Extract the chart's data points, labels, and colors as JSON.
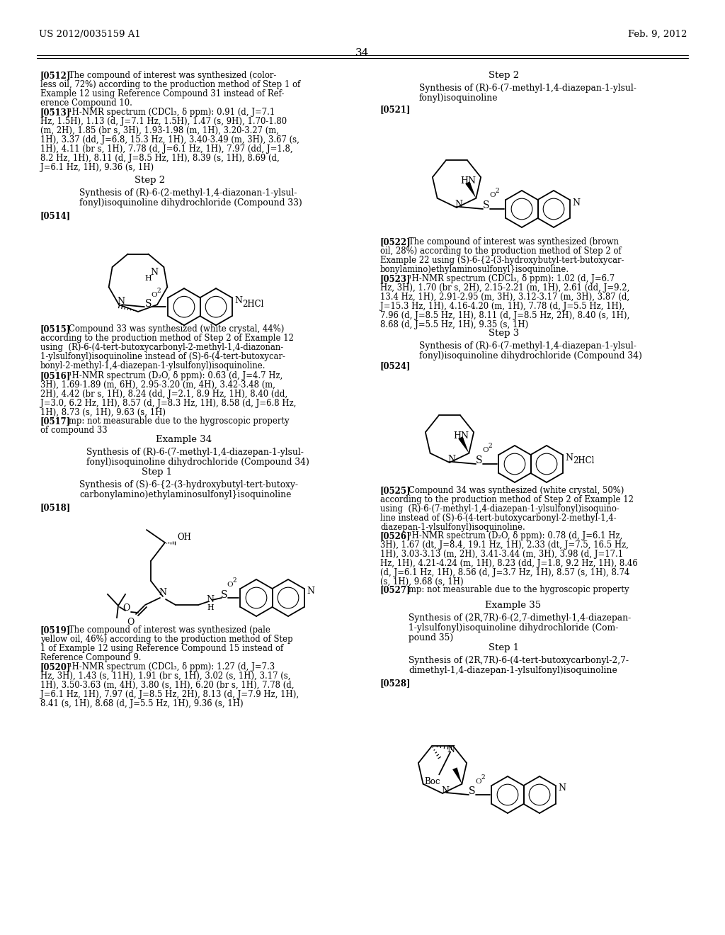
{
  "bg": "#ffffff",
  "header_left": "US 2012/0035159 A1",
  "header_right": "Feb. 9, 2012",
  "page_num": "34"
}
